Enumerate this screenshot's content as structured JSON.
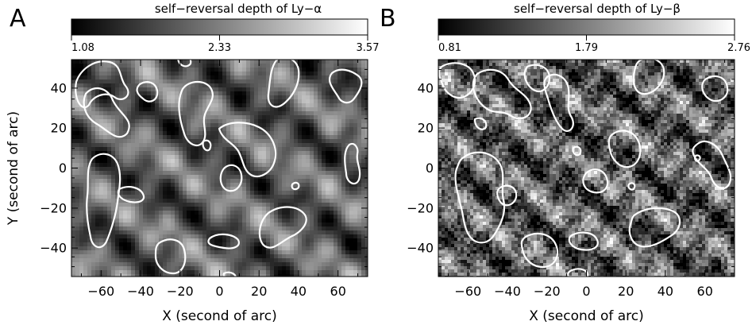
{
  "panels": [
    {
      "letter": "A",
      "colorbar": {
        "title": "self−reversal depth of Ly−α",
        "ticks": [
          "1.08",
          "2.33",
          "3.57"
        ]
      },
      "x_ticks": [
        "−60",
        "−40",
        "−20",
        "0",
        "20",
        "40",
        "60"
      ],
      "y_ticks": [
        "40",
        "20",
        "0",
        "−20",
        "−40"
      ],
      "xlabel": "X (second of arc)",
      "ylabel": "Y (second of arc)"
    },
    {
      "letter": "B",
      "colorbar": {
        "title": "self−reversal depth of Ly−β",
        "ticks": [
          "0.81",
          "1.79",
          "2.76"
        ]
      },
      "x_ticks": [
        "−60",
        "−40",
        "−20",
        "0",
        "20",
        "40",
        "60"
      ],
      "y_ticks": [
        "40",
        "20",
        "0",
        "−20",
        "−40"
      ],
      "xlabel": "X (second of arc)",
      "ylabel": ""
    }
  ],
  "chart_data": [
    {
      "type": "heatmap",
      "title": "self−reversal depth of Ly−α",
      "colorbar_range": [
        1.08,
        3.57
      ],
      "colorbar_ticks": [
        1.08,
        2.33,
        3.57
      ],
      "colormap": "grayscale",
      "contour_color": "#ffffff",
      "xlabel": "X (second of arc)",
      "ylabel": "Y (second of arc)",
      "xlim": [
        -75,
        75
      ],
      "ylim": [
        -55,
        55
      ],
      "xticks": [
        -60,
        -40,
        -20,
        0,
        20,
        40,
        60
      ],
      "yticks": [
        -40,
        -20,
        0,
        20,
        40
      ]
    },
    {
      "type": "heatmap",
      "title": "self−reversal depth of Ly−β",
      "colorbar_range": [
        0.81,
        2.76
      ],
      "colorbar_ticks": [
        0.81,
        1.79,
        2.76
      ],
      "colormap": "grayscale",
      "contour_color": "#ffffff",
      "xlabel": "X (second of arc)",
      "xlim": [
        -75,
        75
      ],
      "ylim": [
        -55,
        55
      ],
      "xticks": [
        -60,
        -40,
        -20,
        0,
        20,
        40,
        60
      ],
      "yticks": [
        -40,
        -20,
        0,
        20,
        40
      ]
    }
  ]
}
